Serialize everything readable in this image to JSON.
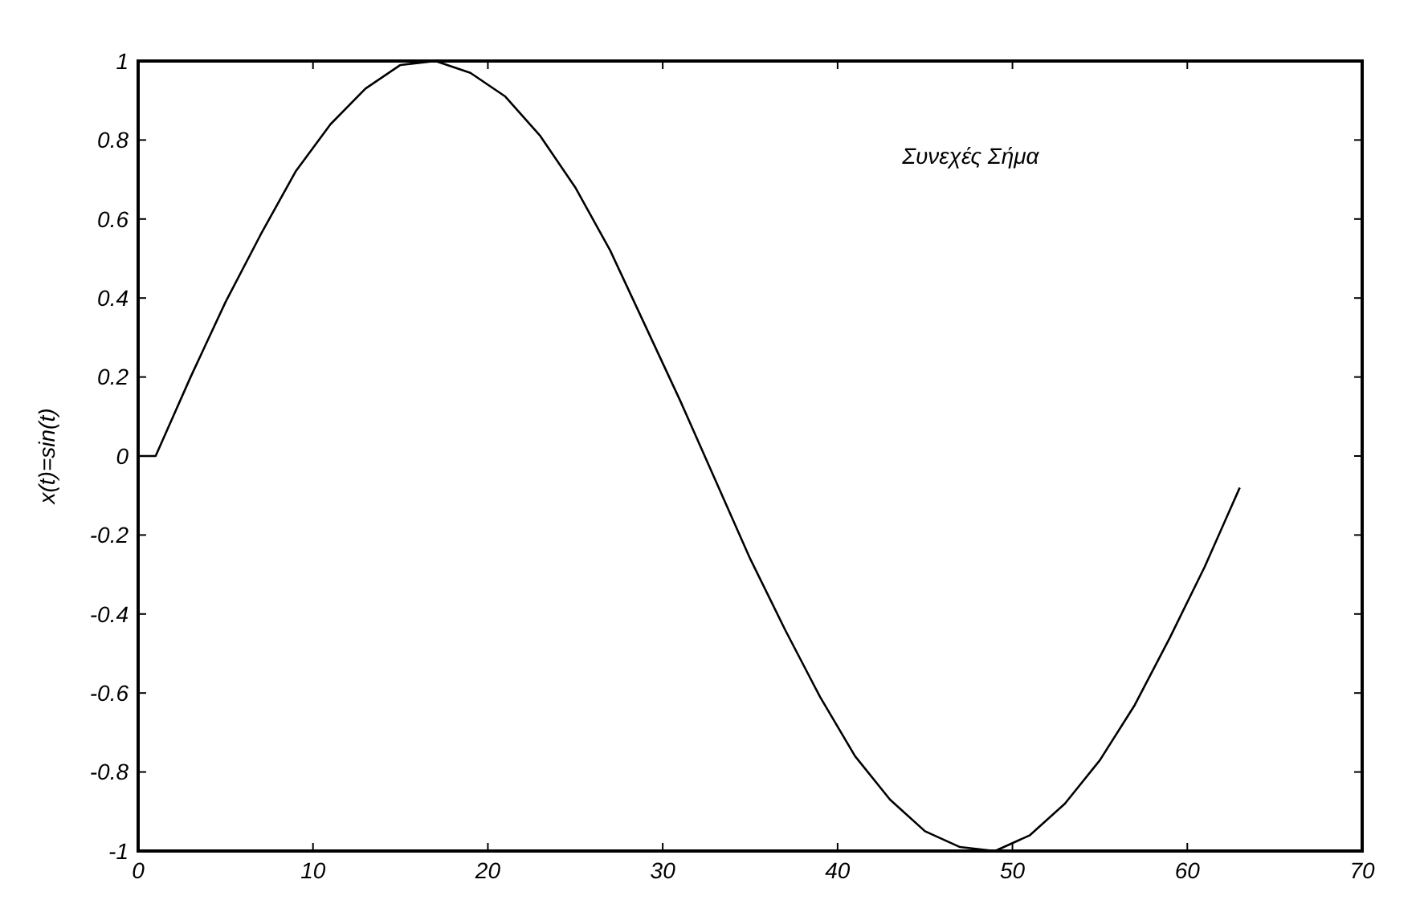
{
  "chart_data": {
    "type": "line",
    "ylabel": "x(t)=sin(t)",
    "annotations": [
      "Συνεχές Σήμα"
    ],
    "x": [
      0,
      1,
      3,
      5,
      7,
      9,
      11,
      13,
      15,
      17,
      19,
      21,
      23,
      25,
      27,
      29,
      31,
      33,
      35,
      37,
      39,
      41,
      43,
      45,
      47,
      49,
      51,
      53,
      55,
      57,
      59,
      61,
      63
    ],
    "series": [
      {
        "color": "#000000",
        "values": [
          0,
          0,
          0.2,
          0.39,
          0.56,
          0.72,
          0.84,
          0.93,
          0.99,
          1,
          0.97,
          0.91,
          0.81,
          0.68,
          0.52,
          0.33,
          0.14,
          -0.06,
          -0.26,
          -0.44,
          -0.61,
          -0.76,
          -0.87,
          -0.95,
          -0.99,
          -1,
          -0.96,
          -0.88,
          -0.77,
          -0.63,
          -0.46,
          -0.28,
          -0.08
        ]
      }
    ],
    "xlim": [
      0,
      70
    ],
    "xticks": [
      0,
      10,
      20,
      30,
      40,
      50,
      60,
      70
    ],
    "ylim": [
      -1,
      1
    ],
    "yticks": [
      -1,
      -0.8,
      -0.6,
      -0.4,
      -0.2,
      0,
      0.2,
      0.4,
      0.6,
      0.8,
      1
    ],
    "grid": false,
    "marker": "none",
    "line_style": "solid"
  }
}
